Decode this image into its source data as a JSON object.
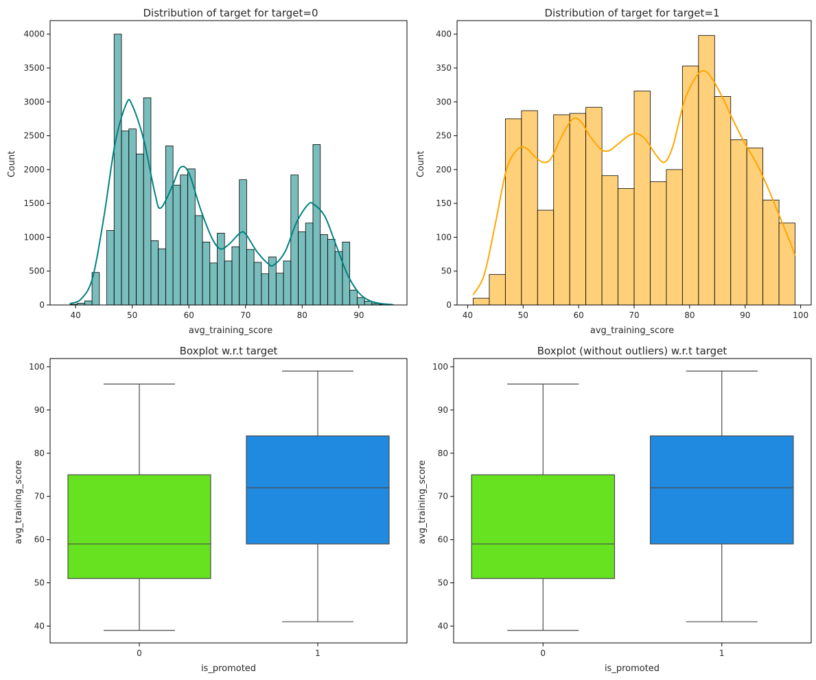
{
  "chart_data": [
    {
      "type": "histogram",
      "title": "Distribution of target for target=0",
      "xlabel": "avg_training_score",
      "ylabel": "Count",
      "xlim": [
        35.5,
        98.5
      ],
      "ylim": [
        0,
        4200
      ],
      "xticks": [
        40,
        50,
        60,
        70,
        80,
        90
      ],
      "yticks": [
        0,
        500,
        1000,
        1500,
        2000,
        2500,
        3000,
        3500,
        4000
      ],
      "bin_start": 39,
      "bin_width": 1.3,
      "counts": [
        10,
        25,
        60,
        480,
        0,
        1100,
        4000,
        2570,
        2600,
        2230,
        3060,
        950,
        830,
        2350,
        1770,
        1920,
        2010,
        1320,
        930,
        620,
        1060,
        650,
        860,
        1850,
        820,
        630,
        460,
        710,
        470,
        650,
        1920,
        1080,
        1210,
        2370,
        1040,
        970,
        790,
        930,
        220,
        110,
        55,
        20,
        8,
        3
      ],
      "kde": [
        [
          39,
          20
        ],
        [
          41,
          90
        ],
        [
          43,
          400
        ],
        [
          45,
          1300
        ],
        [
          47,
          2400
        ],
        [
          49,
          2980
        ],
        [
          50,
          2950
        ],
        [
          52,
          2450
        ],
        [
          54,
          1650
        ],
        [
          55,
          1430
        ],
        [
          57,
          1740
        ],
        [
          58.5,
          2030
        ],
        [
          60,
          1950
        ],
        [
          62,
          1430
        ],
        [
          64,
          1000
        ],
        [
          65.5,
          830
        ],
        [
          67,
          890
        ],
        [
          69,
          1060
        ],
        [
          70,
          1050
        ],
        [
          72,
          790
        ],
        [
          74,
          610
        ],
        [
          75,
          590
        ],
        [
          77,
          790
        ],
        [
          79,
          1220
        ],
        [
          81,
          1480
        ],
        [
          82,
          1490
        ],
        [
          84,
          1310
        ],
        [
          86,
          880
        ],
        [
          88,
          450
        ],
        [
          90,
          180
        ],
        [
          92,
          60
        ],
        [
          94,
          20
        ],
        [
          96,
          5
        ]
      ],
      "fill": "#008080",
      "fill_opacity": 0.52,
      "line": "#008080"
    },
    {
      "type": "histogram",
      "title": "Distribution of target for target=1",
      "xlabel": "avg_training_score",
      "ylabel": "Count",
      "xlim": [
        38.1,
        101.9
      ],
      "ylim": [
        0,
        420
      ],
      "xticks": [
        40,
        50,
        60,
        70,
        80,
        90,
        100
      ],
      "yticks": [
        0,
        50,
        100,
        150,
        200,
        250,
        300,
        350,
        400
      ],
      "bin_start": 41,
      "bin_width": 2.9,
      "counts": [
        10,
        45,
        275,
        287,
        140,
        281,
        283,
        292,
        191,
        172,
        316,
        182,
        200,
        353,
        398,
        308,
        244,
        232,
        155,
        121
      ],
      "kde": [
        [
          41,
          15
        ],
        [
          43,
          45
        ],
        [
          45,
          120
        ],
        [
          47,
          200
        ],
        [
          49,
          230
        ],
        [
          50.5,
          232
        ],
        [
          52,
          220
        ],
        [
          53.5,
          211
        ],
        [
          55,
          216
        ],
        [
          57,
          250
        ],
        [
          59,
          275
        ],
        [
          60.5,
          270
        ],
        [
          62,
          250
        ],
        [
          64,
          230
        ],
        [
          65.5,
          228
        ],
        [
          67,
          237
        ],
        [
          69,
          250
        ],
        [
          70.5,
          253
        ],
        [
          72,
          245
        ],
        [
          74,
          221
        ],
        [
          75.5,
          211
        ],
        [
          77,
          235
        ],
        [
          79,
          300
        ],
        [
          81,
          335
        ],
        [
          82.5,
          346
        ],
        [
          84,
          335
        ],
        [
          86,
          305
        ],
        [
          88,
          270
        ],
        [
          90,
          238
        ],
        [
          92,
          210
        ],
        [
          94,
          175
        ],
        [
          96,
          135
        ],
        [
          98,
          95
        ],
        [
          99,
          73
        ]
      ],
      "fill": "#ffa500",
      "fill_opacity": 0.52,
      "line": "#ffa500"
    },
    {
      "type": "box",
      "title": "Boxplot w.r.t target",
      "xlabel": "is_promoted",
      "ylabel": "avg_training_score",
      "ylim": [
        36.1,
        101.9
      ],
      "yticks": [
        40,
        50,
        60,
        70,
        80,
        90,
        100
      ],
      "categories": [
        "0",
        "1"
      ],
      "boxes": [
        {
          "category": "0",
          "whisker_low": 39,
          "q1": 51,
          "median": 59,
          "q3": 75,
          "whisker_high": 96,
          "color": "#66e220"
        },
        {
          "category": "1",
          "whisker_low": 41,
          "q1": 59,
          "median": 72,
          "q3": 84,
          "whisker_high": 99,
          "color": "#208ae0"
        }
      ]
    },
    {
      "type": "box",
      "title": "Boxplot (without outliers) w.r.t target",
      "xlabel": "is_promoted",
      "ylabel": "avg_training_score",
      "ylim": [
        36.1,
        101.9
      ],
      "yticks": [
        40,
        50,
        60,
        70,
        80,
        90,
        100
      ],
      "categories": [
        "0",
        "1"
      ],
      "boxes": [
        {
          "category": "0",
          "whisker_low": 39,
          "q1": 51,
          "median": 59,
          "q3": 75,
          "whisker_high": 96,
          "color": "#66e220"
        },
        {
          "category": "1",
          "whisker_low": 41,
          "q1": 59,
          "median": 72,
          "q3": 84,
          "whisker_high": 99,
          "color": "#208ae0"
        }
      ]
    }
  ]
}
